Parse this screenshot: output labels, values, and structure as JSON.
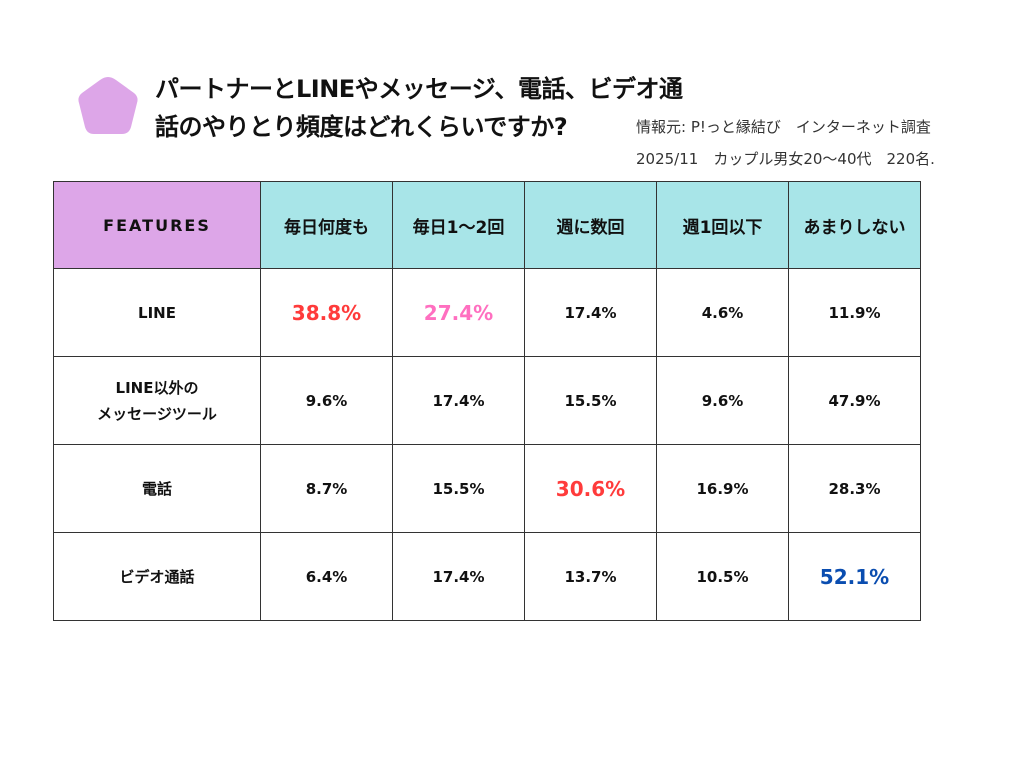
{
  "title": {
    "line1": "パートナーとLINEやメッセージ、電話、ビデオ通",
    "line2": "話のやりとり頻度はどれくらいですか?"
  },
  "source": {
    "line1": "情報元: P!っと縁結び　インターネット調査",
    "line2": "2025/11　カップル男女20〜40代　220名."
  },
  "icon": "pentagon-icon",
  "colors": {
    "header_feature": "#dda6e8",
    "header": "#a8e5e8",
    "highlight_red": "#ff3b3b",
    "highlight_pink": "#ff6fc0",
    "highlight_blue": "#0a4db0"
  },
  "chart_data": {
    "type": "table",
    "columns": [
      "FEATURES",
      "毎日何度も",
      "毎日1〜2回",
      "週に数回",
      "週1回以下",
      "あまりしない"
    ],
    "rows": [
      {
        "label": "LINE",
        "values": [
          "38.8%",
          "27.4%",
          "17.4%",
          "4.6%",
          "11.9%"
        ],
        "highlight": {
          "0": "red",
          "1": "pink"
        }
      },
      {
        "label": "LINE以外の\nメッセージツール",
        "values": [
          "9.6%",
          "17.4%",
          "15.5%",
          "9.6%",
          "47.9%"
        ],
        "highlight": {}
      },
      {
        "label": "電話",
        "values": [
          "8.7%",
          "15.5%",
          "30.6%",
          "16.9%",
          "28.3%"
        ],
        "highlight": {
          "2": "red"
        }
      },
      {
        "label": "ビデオ通話",
        "values": [
          "6.4%",
          "17.4%",
          "13.7%",
          "10.5%",
          "52.1%"
        ],
        "highlight": {
          "4": "blue"
        }
      }
    ]
  }
}
